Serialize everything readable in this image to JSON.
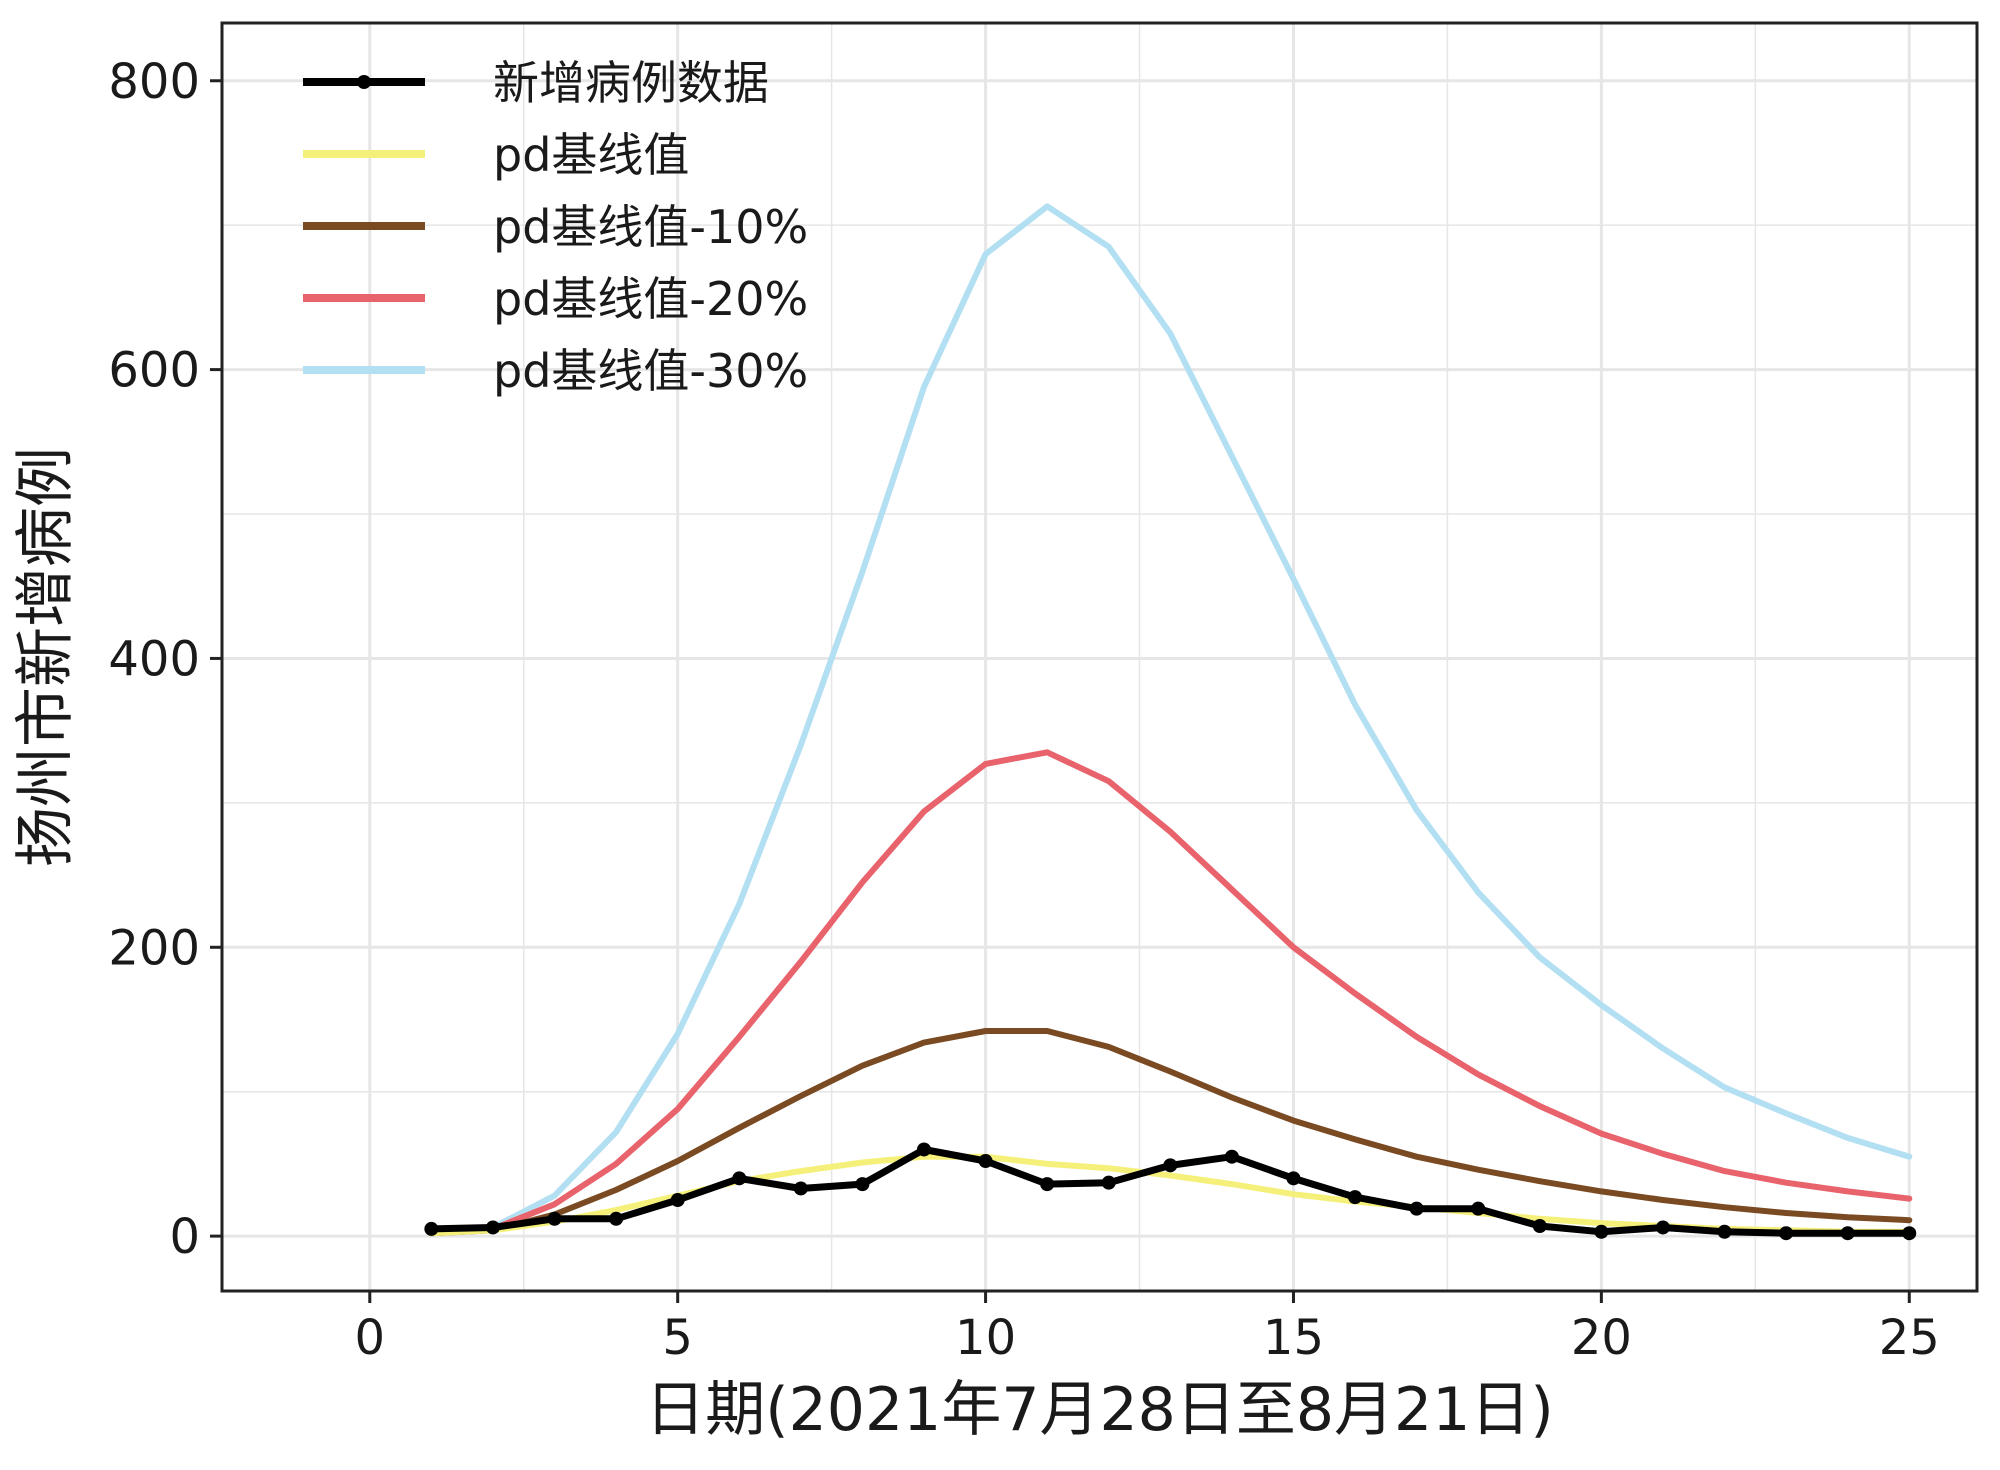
{
  "chart_data": {
    "type": "line",
    "xlabel": "日期(2021年7月28日至8月21日)",
    "ylabel": "扬州市新增病例",
    "xlim": [
      -2.4,
      26.1
    ],
    "ylim": [
      -38,
      840
    ],
    "x_ticks": [
      0,
      5,
      10,
      15,
      20,
      25
    ],
    "y_ticks": [
      0,
      200,
      400,
      600,
      800
    ],
    "grid": true,
    "legend_position": "top-left",
    "series": [
      {
        "name": "新增病例数据",
        "color": "#000000",
        "style": "line-with-points",
        "x": [
          1,
          2,
          3,
          4,
          5,
          6,
          7,
          8,
          9,
          10,
          11,
          12,
          13,
          14,
          15,
          16,
          17,
          18,
          19,
          20,
          21,
          22,
          23,
          24,
          25
        ],
        "y": [
          5,
          6,
          12,
          12,
          25,
          40,
          33,
          36,
          60,
          52,
          36,
          37,
          49,
          55,
          40,
          27,
          19,
          19,
          7,
          3,
          6,
          3,
          2,
          2,
          2
        ]
      },
      {
        "name": "pd基线值",
        "color": "#f5f07a",
        "x": [
          1,
          2,
          3,
          4,
          5,
          6,
          7,
          8,
          9,
          10,
          11,
          12,
          13,
          14,
          15,
          16,
          17,
          18,
          19,
          20,
          21,
          22,
          23,
          24,
          25
        ],
        "y": [
          2,
          4,
          10,
          18,
          28,
          38,
          45,
          51,
          55,
          55,
          50,
          47,
          42,
          36,
          29,
          24,
          20,
          16,
          12,
          9,
          7,
          5,
          4,
          3,
          3
        ]
      },
      {
        "name": "pd基线值-10%",
        "color": "#7a4a22",
        "x": [
          1,
          2,
          3,
          4,
          5,
          6,
          7,
          8,
          9,
          10,
          11,
          12,
          13,
          14,
          15,
          16,
          17,
          18,
          19,
          20,
          21,
          22,
          23,
          24,
          25
        ],
        "y": [
          2,
          4,
          15,
          32,
          52,
          75,
          97,
          118,
          134,
          142,
          142,
          131,
          114,
          96,
          80,
          67,
          55,
          46,
          38,
          31,
          25,
          20,
          16,
          13,
          11
        ]
      },
      {
        "name": "pd基线值-20%",
        "color": "#e8636b",
        "x": [
          1,
          2,
          3,
          4,
          5,
          6,
          7,
          8,
          9,
          10,
          11,
          12,
          13,
          14,
          15,
          16,
          17,
          18,
          19,
          20,
          21,
          22,
          23,
          24,
          25
        ],
        "y": [
          2,
          5,
          22,
          50,
          88,
          138,
          190,
          245,
          294,
          327,
          335,
          315,
          280,
          240,
          200,
          168,
          138,
          112,
          90,
          71,
          57,
          45,
          37,
          31,
          26
        ]
      },
      {
        "name": "pd基线值-30%",
        "color": "#b3dff2",
        "x": [
          1,
          2,
          3,
          4,
          5,
          6,
          7,
          8,
          9,
          10,
          11,
          12,
          13,
          14,
          15,
          16,
          17,
          18,
          19,
          20,
          21,
          22,
          23,
          24,
          25
        ],
        "y": [
          2,
          6,
          28,
          72,
          140,
          230,
          340,
          460,
          588,
          680,
          713,
          685,
          625,
          540,
          455,
          368,
          295,
          238,
          193,
          160,
          130,
          103,
          85,
          68,
          55
        ]
      }
    ]
  },
  "colors": {
    "axis": "#222222",
    "grid": "#e6e6e6",
    "background": "#ffffff"
  }
}
